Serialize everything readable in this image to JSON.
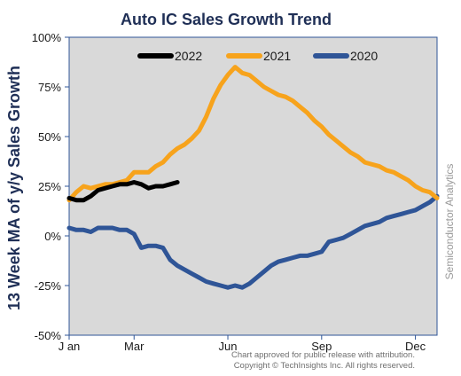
{
  "chart_data": {
    "type": "line",
    "title": "Auto IC Sales Growth Trend",
    "ylabel": "13 Week MA of y/y Sales Growth",
    "xlabel": "",
    "y_unit": "%",
    "ylim": [
      -50,
      100
    ],
    "yticks": [
      100,
      75,
      50,
      25,
      0,
      -25,
      -50
    ],
    "ytick_labels": [
      "100%",
      "75%",
      "50%",
      "25%",
      "0%",
      "-25%",
      "-50%"
    ],
    "x_unit": "week of year",
    "xlim": [
      1,
      52
    ],
    "xticks": [
      {
        "label": "J an",
        "week": 1
      },
      {
        "label": "Mar",
        "week": 10
      },
      {
        "label": "Jun",
        "week": 23
      },
      {
        "label": "Sep",
        "week": 36
      },
      {
        "label": "Dec",
        "week": 49
      }
    ],
    "grid": false,
    "legend_position": "top",
    "plot_background": "#d9d9d9",
    "series": [
      {
        "name": "2022",
        "color": "#000000",
        "points": [
          [
            1,
            19
          ],
          [
            2,
            18
          ],
          [
            3,
            18
          ],
          [
            4,
            20
          ],
          [
            5,
            23
          ],
          [
            6,
            24
          ],
          [
            7,
            25
          ],
          [
            8,
            26
          ],
          [
            9,
            26
          ],
          [
            10,
            27
          ],
          [
            11,
            26
          ],
          [
            12,
            24
          ],
          [
            13,
            25
          ],
          [
            14,
            25
          ],
          [
            15,
            26
          ],
          [
            16,
            27
          ]
        ]
      },
      {
        "name": "2021",
        "color": "#f7a31c",
        "points": [
          [
            1,
            18
          ],
          [
            2,
            22
          ],
          [
            3,
            25
          ],
          [
            4,
            24
          ],
          [
            5,
            25
          ],
          [
            6,
            26
          ],
          [
            7,
            26
          ],
          [
            8,
            27
          ],
          [
            9,
            28
          ],
          [
            10,
            32
          ],
          [
            11,
            32
          ],
          [
            12,
            32
          ],
          [
            13,
            35
          ],
          [
            14,
            37
          ],
          [
            15,
            41
          ],
          [
            16,
            44
          ],
          [
            17,
            46
          ],
          [
            18,
            49
          ],
          [
            19,
            53
          ],
          [
            20,
            60
          ],
          [
            21,
            69
          ],
          [
            22,
            76
          ],
          [
            23,
            81
          ],
          [
            24,
            85
          ],
          [
            25,
            82
          ],
          [
            26,
            81
          ],
          [
            27,
            78
          ],
          [
            28,
            75
          ],
          [
            29,
            73
          ],
          [
            30,
            71
          ],
          [
            31,
            70
          ],
          [
            32,
            68
          ],
          [
            33,
            65
          ],
          [
            34,
            62
          ],
          [
            35,
            58
          ],
          [
            36,
            55
          ],
          [
            37,
            51
          ],
          [
            38,
            48
          ],
          [
            39,
            45
          ],
          [
            40,
            42
          ],
          [
            41,
            40
          ],
          [
            42,
            37
          ],
          [
            43,
            36
          ],
          [
            44,
            35
          ],
          [
            45,
            33
          ],
          [
            46,
            32
          ],
          [
            47,
            30
          ],
          [
            48,
            28
          ],
          [
            49,
            25
          ],
          [
            50,
            23
          ],
          [
            51,
            22
          ],
          [
            52,
            19
          ]
        ]
      },
      {
        "name": "2020",
        "color": "#2f5597",
        "points": [
          [
            1,
            4
          ],
          [
            2,
            3
          ],
          [
            3,
            3
          ],
          [
            4,
            2
          ],
          [
            5,
            4
          ],
          [
            6,
            4
          ],
          [
            7,
            4
          ],
          [
            8,
            3
          ],
          [
            9,
            3
          ],
          [
            10,
            1
          ],
          [
            11,
            -6
          ],
          [
            12,
            -5
          ],
          [
            13,
            -5
          ],
          [
            14,
            -6
          ],
          [
            15,
            -12
          ],
          [
            16,
            -15
          ],
          [
            17,
            -17
          ],
          [
            18,
            -19
          ],
          [
            19,
            -21
          ],
          [
            20,
            -23
          ],
          [
            21,
            -24
          ],
          [
            22,
            -25
          ],
          [
            23,
            -26
          ],
          [
            24,
            -25
          ],
          [
            25,
            -26
          ],
          [
            26,
            -24
          ],
          [
            27,
            -21
          ],
          [
            28,
            -18
          ],
          [
            29,
            -15
          ],
          [
            30,
            -13
          ],
          [
            31,
            -12
          ],
          [
            32,
            -11
          ],
          [
            33,
            -10
          ],
          [
            34,
            -10
          ],
          [
            35,
            -9
          ],
          [
            36,
            -8
          ],
          [
            37,
            -3
          ],
          [
            38,
            -2
          ],
          [
            39,
            -1
          ],
          [
            40,
            1
          ],
          [
            41,
            3
          ],
          [
            42,
            5
          ],
          [
            43,
            6
          ],
          [
            44,
            7
          ],
          [
            45,
            9
          ],
          [
            46,
            10
          ],
          [
            47,
            11
          ],
          [
            48,
            12
          ],
          [
            49,
            13
          ],
          [
            50,
            15
          ],
          [
            51,
            17
          ],
          [
            52,
            20
          ]
        ]
      }
    ]
  },
  "watermark": "Semiconductor Analytics",
  "credit_line_1": "Chart approved  for public release with attribution.",
  "credit_line_2": "Copyright © TechInsights Inc.  All rights reserved."
}
